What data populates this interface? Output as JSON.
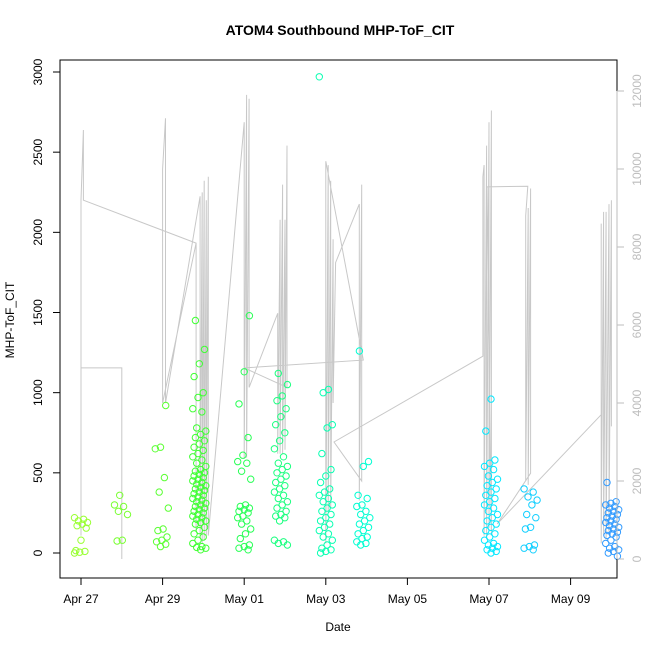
{
  "chart_data": {
    "type": "scatter",
    "title": "ATOM4 Southbound MHP-ToF_CIT",
    "xlabel": "Date",
    "ylabel": "MHP-ToF_CIT",
    "ylim": [
      0,
      3000
    ],
    "xlim_days": [
      -0.3,
      13.25
    ],
    "x_ticks": [
      {
        "day": 0,
        "label": "Apr 27"
      },
      {
        "day": 2,
        "label": "Apr 29"
      },
      {
        "day": 4,
        "label": "May 01"
      },
      {
        "day": 6,
        "label": "May 03"
      },
      {
        "day": 8,
        "label": "May 05"
      },
      {
        "day": 10,
        "label": "May 07"
      },
      {
        "day": 12,
        "label": "May 09"
      }
    ],
    "y_ticks": [
      0,
      500,
      1000,
      1500,
      2000,
      2500,
      3000
    ],
    "y2_ticks": [
      0,
      2000,
      4000,
      6000,
      8000,
      10000,
      12000
    ],
    "y2_range": [
      0,
      12500
    ],
    "colors": {
      "line_series": "#c8c8c8",
      "axis_right": "#bdbdbd",
      "point_gradient": [
        "#99ff33",
        "#33ff33",
        "#00ffcc",
        "#00eeff",
        "#3399ff"
      ]
    },
    "clusters": [
      {
        "day": 0.0,
        "values": [
          0,
          5,
          10,
          15,
          80,
          155,
          170,
          180,
          190,
          200,
          210,
          220
        ]
      },
      {
        "day": 0.98,
        "values": [
          75,
          80,
          240,
          260,
          290,
          300,
          360
        ]
      },
      {
        "day": 1.98,
        "values": [
          40,
          55,
          70,
          80,
          100,
          140,
          150,
          280,
          380,
          470,
          650,
          660,
          920
        ]
      },
      {
        "day": 2.9,
        "values": [
          20,
          30,
          35,
          40,
          60,
          80,
          100,
          120,
          140,
          160,
          180,
          190,
          200,
          210,
          220,
          230,
          240,
          250,
          260,
          270,
          280,
          290,
          300,
          310,
          320,
          330,
          340,
          350,
          360,
          370,
          380,
          390,
          400,
          410,
          420,
          430,
          440,
          450,
          460,
          470,
          480,
          490,
          500,
          510,
          520,
          540,
          560,
          580,
          600,
          620,
          640,
          660,
          680,
          700,
          720,
          740,
          760,
          780,
          880,
          900,
          970,
          1000,
          1100,
          1180,
          1270,
          1450
        ]
      },
      {
        "day": 4.0,
        "values": [
          20,
          30,
          40,
          50,
          90,
          120,
          150,
          180,
          200,
          220,
          230,
          250,
          260,
          270,
          280,
          290,
          300,
          460,
          510,
          560,
          570,
          610,
          720,
          930,
          1130,
          1480
        ]
      },
      {
        "day": 4.9,
        "values": [
          50,
          60,
          70,
          80,
          200,
          220,
          230,
          240,
          260,
          280,
          300,
          320,
          340,
          360,
          380,
          400,
          420,
          440,
          460,
          480,
          500,
          520,
          540,
          560,
          600,
          650,
          700,
          750,
          800,
          850,
          900,
          950,
          980,
          1050,
          1120
        ]
      },
      {
        "day": 6.0,
        "values": [
          0,
          10,
          20,
          30,
          50,
          80,
          100,
          120,
          140,
          160,
          180,
          200,
          220,
          240,
          260,
          280,
          300,
          320,
          340,
          360,
          380,
          400,
          440,
          480,
          520,
          620,
          780,
          800,
          1000,
          1020,
          2970
        ]
      },
      {
        "day": 6.92,
        "values": [
          50,
          60,
          70,
          90,
          100,
          120,
          140,
          160,
          180,
          200,
          220,
          240,
          260,
          290,
          300,
          340,
          360,
          540,
          570,
          1260
        ]
      },
      {
        "day": 10.05,
        "values": [
          0,
          10,
          20,
          30,
          40,
          50,
          60,
          80,
          100,
          120,
          140,
          160,
          180,
          200,
          220,
          240,
          260,
          280,
          300,
          320,
          340,
          360,
          380,
          400,
          420,
          440,
          460,
          480,
          520,
          540,
          560,
          580,
          760,
          960
        ]
      },
      {
        "day": 11.02,
        "values": [
          20,
          30,
          40,
          50,
          150,
          160,
          220,
          240,
          300,
          330,
          350,
          380,
          400
        ]
      },
      {
        "day": 13.02,
        "values": [
          -20,
          0,
          10,
          20,
          30,
          40,
          60,
          80,
          100,
          110,
          120,
          130,
          140,
          150,
          160,
          170,
          180,
          190,
          200,
          210,
          220,
          230,
          240,
          250,
          260,
          270,
          280,
          290,
          300,
          310,
          320,
          440
        ]
      }
    ],
    "line_series_y2": {
      "name": "",
      "points": [
        [
          0.0,
          600
        ],
        [
          0.0,
          4900
        ],
        [
          1.0,
          4900
        ],
        [
          1.0,
          0
        ],
        [
          1.0,
          4900
        ],
        [
          0.0,
          4900
        ],
        [
          0.0,
          9200
        ],
        [
          0.06,
          11000
        ],
        [
          0.06,
          9200
        ],
        [
          2.82,
          8100
        ],
        [
          2.82,
          700
        ],
        [
          2.82,
          8100
        ],
        [
          2.0,
          4000
        ],
        [
          2.0,
          10000
        ],
        [
          2.07,
          11300
        ],
        [
          2.07,
          4000
        ],
        [
          2.92,
          9300
        ],
        [
          2.92,
          600
        ],
        [
          2.97,
          9400
        ],
        [
          2.97,
          400
        ],
        [
          3.02,
          9700
        ],
        [
          3.02,
          500
        ],
        [
          3.07,
          9200
        ],
        [
          3.07,
          600
        ],
        [
          3.12,
          9800
        ],
        [
          3.12,
          600
        ],
        [
          4.0,
          11200
        ],
        [
          4.0,
          2600
        ],
        [
          4.06,
          11900
        ],
        [
          4.06,
          2600
        ],
        [
          4.12,
          11800
        ],
        [
          4.12,
          4400
        ],
        [
          4.82,
          6300
        ],
        [
          4.82,
          2700
        ],
        [
          4.88,
          8700
        ],
        [
          4.88,
          2700
        ],
        [
          4.94,
          9600
        ],
        [
          4.94,
          2700
        ],
        [
          5.0,
          8700
        ],
        [
          5.0,
          2800
        ],
        [
          5.05,
          10600
        ],
        [
          5.05,
          4400
        ],
        [
          4.0,
          4900
        ],
        [
          6.92,
          5100
        ],
        [
          6.0,
          10200
        ],
        [
          6.0,
          400
        ],
        [
          6.06,
          10100
        ],
        [
          6.06,
          1200
        ],
        [
          6.12,
          9700
        ],
        [
          6.12,
          1300
        ],
        [
          6.18,
          8200
        ],
        [
          6.18,
          4000
        ],
        [
          6.24,
          7600
        ],
        [
          6.82,
          9100
        ],
        [
          6.82,
          1500
        ],
        [
          6.88,
          9600
        ],
        [
          6.88,
          2000
        ],
        [
          6.2,
          3000
        ],
        [
          9.85,
          5200
        ],
        [
          9.85,
          9800
        ],
        [
          9.88,
          10100
        ],
        [
          9.88,
          600
        ],
        [
          9.94,
          10600
        ],
        [
          9.94,
          500
        ],
        [
          10.0,
          11200
        ],
        [
          10.0,
          800
        ],
        [
          10.06,
          11500
        ],
        [
          10.06,
          600
        ],
        [
          9.95,
          9540
        ],
        [
          10.95,
          9560
        ],
        [
          10.9,
          8800
        ],
        [
          10.9,
          2000
        ],
        [
          10.96,
          9000
        ],
        [
          10.96,
          1900
        ],
        [
          11.02,
          9500
        ],
        [
          11.02,
          2200
        ],
        [
          10.2,
          900
        ],
        [
          12.75,
          3700
        ],
        [
          12.75,
          8600
        ],
        [
          12.75,
          400
        ],
        [
          12.81,
          8900
        ],
        [
          12.81,
          600
        ],
        [
          12.87,
          8900
        ],
        [
          12.87,
          500
        ],
        [
          12.94,
          9100
        ],
        [
          12.94,
          700
        ],
        [
          13.0,
          9200
        ],
        [
          13.0,
          3400
        ]
      ]
    }
  }
}
